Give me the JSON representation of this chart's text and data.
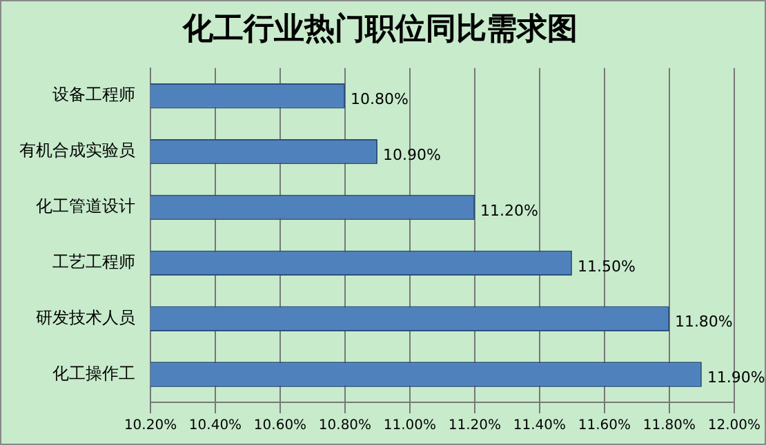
{
  "chart_data": {
    "type": "bar",
    "orientation": "horizontal",
    "title": "化工行业热门职位同比需求图",
    "categories": [
      "设备工程师",
      "有机合成实验员",
      "化工管道设计",
      "工艺工程师",
      "研发技术人员",
      "化工操作工"
    ],
    "values": [
      10.8,
      10.9,
      11.2,
      11.5,
      11.8,
      11.9
    ],
    "value_labels": [
      "10.80%",
      "10.90%",
      "11.20%",
      "11.50%",
      "11.80%",
      "11.90%"
    ],
    "color": "#4f81bd",
    "xlim": [
      10.2,
      12.0
    ],
    "xticks": [
      {
        "value": 10.2,
        "label": "10.20%"
      },
      {
        "value": 10.4,
        "label": "10.40%"
      },
      {
        "value": 10.6,
        "label": "10.60%"
      },
      {
        "value": 10.8,
        "label": "10.80%"
      },
      {
        "value": 11.0,
        "label": "11.00%"
      },
      {
        "value": 11.2,
        "label": "11.20%"
      },
      {
        "value": 11.4,
        "label": "11.40%"
      },
      {
        "value": 11.6,
        "label": "11.60%"
      },
      {
        "value": 11.8,
        "label": "11.80%"
      },
      {
        "value": 12.0,
        "label": "12.00%"
      }
    ],
    "grid": "x",
    "legend": false
  }
}
